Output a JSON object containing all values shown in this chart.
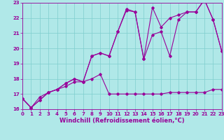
{
  "xlabel": "Windchill (Refroidissement éolien,°C)",
  "bg_color": "#b0e8e8",
  "grid_color": "#7ecece",
  "line_color": "#990099",
  "xmin": 0,
  "xmax": 23,
  "ymin": 16,
  "ymax": 23,
  "line1_x": [
    0,
    1,
    2,
    3,
    4,
    5,
    6,
    7,
    8,
    9,
    10,
    11,
    12,
    13,
    14,
    15,
    16,
    17,
    18,
    19,
    20,
    21,
    22,
    23
  ],
  "line1_y": [
    16.7,
    16.1,
    16.8,
    17.1,
    17.3,
    17.5,
    17.8,
    17.8,
    18.0,
    18.3,
    17.0,
    17.0,
    17.0,
    17.0,
    17.0,
    17.0,
    17.0,
    17.1,
    17.1,
    17.1,
    17.1,
    17.1,
    17.3,
    17.3
  ],
  "line2_x": [
    0,
    1,
    2,
    3,
    4,
    5,
    6,
    7,
    8,
    9,
    10,
    11,
    12,
    13,
    14,
    15,
    16,
    17,
    18,
    19,
    20,
    21,
    22,
    23
  ],
  "line2_y": [
    16.7,
    16.1,
    16.6,
    17.1,
    17.3,
    17.7,
    18.0,
    17.8,
    19.5,
    19.7,
    19.5,
    21.1,
    22.6,
    22.4,
    19.3,
    20.9,
    21.1,
    19.5,
    21.9,
    22.4,
    22.4,
    23.2,
    21.9,
    19.8
  ],
  "line3_x": [
    0,
    1,
    2,
    3,
    4,
    5,
    6,
    7,
    8,
    9,
    10,
    11,
    12,
    13,
    14,
    15,
    16,
    17,
    18,
    19,
    20,
    21,
    22,
    23
  ],
  "line3_y": [
    16.7,
    16.1,
    16.6,
    17.1,
    17.3,
    17.7,
    18.0,
    17.8,
    19.5,
    19.7,
    19.5,
    21.1,
    22.5,
    22.4,
    19.3,
    22.7,
    21.4,
    22.0,
    22.2,
    22.4,
    22.4,
    23.2,
    21.9,
    19.8
  ],
  "yticks": [
    16,
    17,
    18,
    19,
    20,
    21,
    22,
    23
  ],
  "xticks": [
    0,
    1,
    2,
    3,
    4,
    5,
    6,
    7,
    8,
    9,
    10,
    11,
    12,
    13,
    14,
    15,
    16,
    17,
    18,
    19,
    20,
    21,
    22,
    23
  ],
  "marker": "D",
  "markersize": 1.8,
  "linewidth": 0.8,
  "fontsize_label": 6.0,
  "fontsize_tick": 5.0
}
